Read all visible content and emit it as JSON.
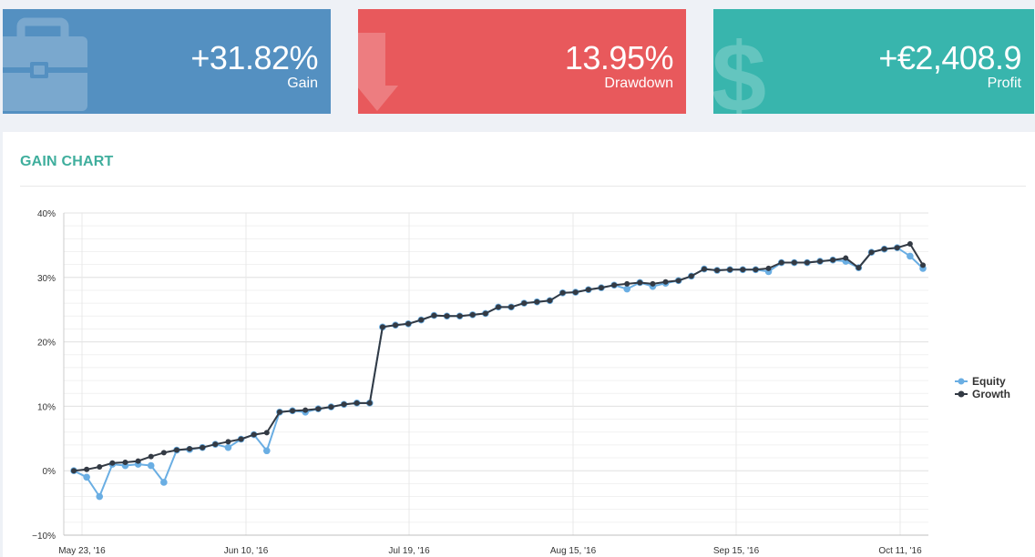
{
  "cards": [
    {
      "value": "+31.82%",
      "label": "Gain",
      "icon": "briefcase-icon",
      "color": "#5490c1"
    },
    {
      "value": "13.95%",
      "label": "Drawdown",
      "icon": "arrow-down-icon",
      "color": "#e8595c"
    },
    {
      "value": "+€2,408.9",
      "label": "Profit",
      "icon": "dollar-icon",
      "color": "#38b5ad"
    }
  ],
  "panel": {
    "title": "GAIN CHART"
  },
  "chart_data": {
    "type": "line",
    "x_tick_labels": [
      "May 23, '16",
      "Jun 10, '16",
      "Jul 19, '16",
      "Aug 15, '16",
      "Sep 15, '16",
      "Oct 11, '16"
    ],
    "y_tick_labels": [
      "40%",
      "30%",
      "20%",
      "10%",
      "0%",
      "−10%"
    ],
    "ylim": [
      -10,
      40
    ],
    "grid": true,
    "legend_position": "right",
    "series": [
      {
        "name": "Equity",
        "color": "#6aaee3",
        "values": [
          0,
          -1,
          -4,
          1,
          0.8,
          1,
          0.8,
          -1.8,
          3.2,
          3.3,
          3.6,
          4.1,
          3.6,
          4.9,
          5.6,
          3.1,
          9.1,
          9.3,
          9.1,
          9.6,
          9.9,
          10.3,
          10.5,
          10.5,
          22.3,
          22.6,
          22.8,
          23.4,
          24.1,
          24,
          24,
          24.2,
          24.4,
          25.4,
          25.4,
          26,
          26.2,
          26.4,
          27.6,
          27.7,
          28.1,
          28.4,
          28.8,
          28.2,
          29.2,
          28.6,
          29.1,
          29.5,
          30.2,
          31.3,
          31.1,
          31.2,
          31.2,
          31.2,
          30.9,
          32.3,
          32.3,
          32.3,
          32.5,
          32.7,
          32.5,
          31.5,
          33.9,
          34.4,
          34.6,
          33.3,
          31.4
        ]
      },
      {
        "name": "Growth",
        "color": "#333a44",
        "values": [
          0,
          0.2,
          0.6,
          1.2,
          1.3,
          1.5,
          2.2,
          2.8,
          3.2,
          3.4,
          3.6,
          4.1,
          4.5,
          4.9,
          5.6,
          5.9,
          9.1,
          9.3,
          9.4,
          9.6,
          9.9,
          10.3,
          10.5,
          10.5,
          22.3,
          22.6,
          22.8,
          23.4,
          24.1,
          24,
          24,
          24.2,
          24.4,
          25.4,
          25.4,
          26,
          26.2,
          26.4,
          27.6,
          27.7,
          28.1,
          28.4,
          28.8,
          29,
          29.2,
          29,
          29.3,
          29.5,
          30.2,
          31.3,
          31.1,
          31.2,
          31.2,
          31.2,
          31.4,
          32.3,
          32.3,
          32.3,
          32.5,
          32.7,
          33,
          31.5,
          33.9,
          34.4,
          34.6,
          35.2,
          31.9
        ]
      }
    ]
  }
}
